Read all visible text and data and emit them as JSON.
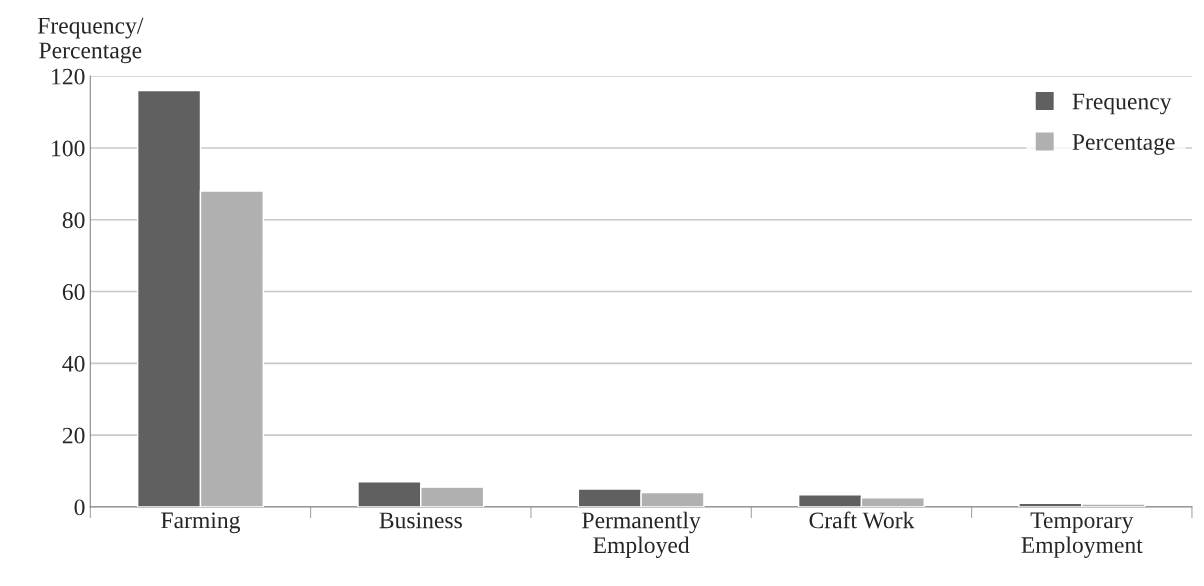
{
  "chart_data": {
    "type": "bar",
    "ylabel": "Frequency/\nPercentage",
    "categories": [
      "Farming",
      "Business",
      "Permanently\nEmployed",
      "Craft Work",
      "Temporary\nEmployment"
    ],
    "series": [
      {
        "name": "Frequency",
        "color": "#606060",
        "values": [
          116,
          7,
          5,
          3.4,
          1
        ]
      },
      {
        "name": "Percentage",
        "color": "#b0b0b0",
        "values": [
          88,
          5.5,
          4,
          2.5,
          0.8
        ]
      }
    ],
    "ylim": [
      0,
      120
    ],
    "yticks": [
      0,
      20,
      40,
      60,
      80,
      100,
      120
    ],
    "grid": "y",
    "legend": "top right"
  }
}
